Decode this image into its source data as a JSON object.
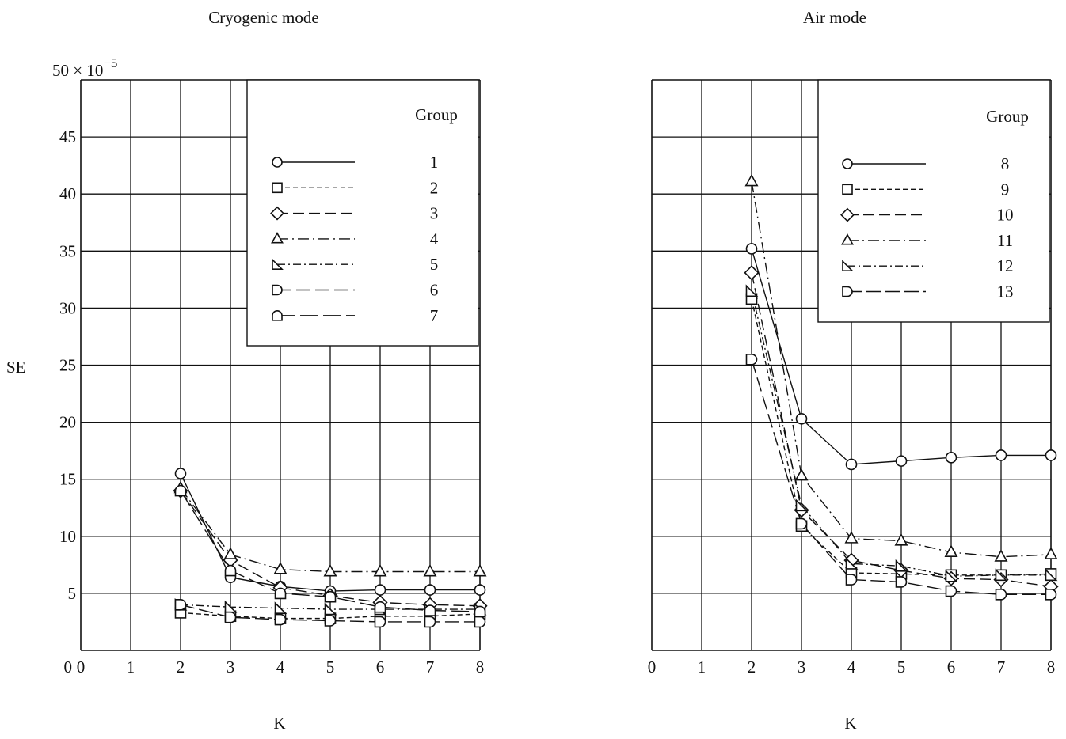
{
  "ylabel": "SE",
  "y_unit_label": "50 × 10",
  "y_unit_exponent": "−5",
  "chart_data": [
    {
      "type": "line",
      "title": "Cryogenic mode",
      "xlabel": "K",
      "ylabel": "SE",
      "xlim": [
        0,
        8
      ],
      "ylim": [
        0,
        50
      ],
      "y_multiplier": "10^-5",
      "grid": true,
      "x_ticks": [
        "0",
        "1",
        "2",
        "3",
        "4",
        "5",
        "6",
        "7",
        "8"
      ],
      "y_ticks": [
        "5",
        "10",
        "15",
        "20",
        "25",
        "30",
        "35",
        "40",
        "45"
      ],
      "y_top_label": "50 × 10−5",
      "legend": {
        "title": "Group",
        "placement": "top-right"
      },
      "x": [
        2,
        3,
        4,
        5,
        6,
        7,
        8
      ],
      "series": [
        {
          "name": "1",
          "marker": "circle",
          "dash": "solid",
          "values": [
            15.5,
            6.4,
            5.6,
            5.2,
            5.3,
            5.3,
            5.3
          ]
        },
        {
          "name": "2",
          "marker": "square",
          "dash": "short",
          "values": [
            3.3,
            3.0,
            2.8,
            2.8,
            3.0,
            3.0,
            3.2
          ]
        },
        {
          "name": "3",
          "marker": "diamond",
          "dash": "long",
          "values": [
            14.0,
            7.9,
            5.5,
            4.8,
            4.2,
            4.0,
            3.9
          ]
        },
        {
          "name": "4",
          "marker": "triangle",
          "dash": "dashdot",
          "values": [
            14.2,
            8.4,
            7.1,
            6.9,
            6.9,
            6.9,
            6.9
          ]
        },
        {
          "name": "5",
          "marker": "triangle-right",
          "dash": "dashdot2",
          "values": [
            4.0,
            3.8,
            3.7,
            3.6,
            3.6,
            3.6,
            3.6
          ]
        },
        {
          "name": "6",
          "marker": "half-right",
          "dash": "longdash",
          "values": [
            4.0,
            2.9,
            2.7,
            2.6,
            2.5,
            2.5,
            2.5
          ]
        },
        {
          "name": "7",
          "marker": "half-top",
          "dash": "longdash2",
          "values": [
            14.0,
            7.0,
            5.0,
            4.7,
            3.8,
            3.5,
            3.4
          ]
        }
      ]
    },
    {
      "type": "line",
      "title": "Air mode",
      "xlabel": "K",
      "ylabel": "SE",
      "xlim": [
        0,
        8
      ],
      "ylim": [
        0,
        50
      ],
      "y_multiplier": "10^-5",
      "grid": true,
      "x_ticks": [
        "0",
        "1",
        "2",
        "3",
        "4",
        "5",
        "6",
        "7",
        "8"
      ],
      "legend": {
        "title": "Group",
        "placement": "top-right"
      },
      "x": [
        2,
        3,
        4,
        5,
        6,
        7,
        8
      ],
      "series": [
        {
          "name": "8",
          "marker": "circle",
          "dash": "solid",
          "values": [
            35.2,
            20.3,
            16.3,
            16.6,
            16.9,
            17.1,
            17.1
          ]
        },
        {
          "name": "9",
          "marker": "square",
          "dash": "short",
          "values": [
            30.8,
            10.9,
            6.8,
            6.7,
            6.6,
            6.6,
            6.7
          ]
        },
        {
          "name": "10",
          "marker": "diamond",
          "dash": "long",
          "values": [
            33.1,
            12.3,
            7.9,
            7.0,
            6.3,
            6.2,
            5.6
          ]
        },
        {
          "name": "11",
          "marker": "triangle",
          "dash": "dashdot",
          "values": [
            41.1,
            15.3,
            9.8,
            9.6,
            8.6,
            8.2,
            8.4
          ]
        },
        {
          "name": "12",
          "marker": "triangle-right",
          "dash": "dashdot2",
          "values": [
            31.5,
            12.7,
            7.6,
            7.4,
            6.5,
            6.6,
            6.6
          ]
        },
        {
          "name": "13",
          "marker": "half-right",
          "dash": "longdash",
          "values": [
            25.5,
            11.1,
            6.2,
            6.0,
            5.2,
            4.9,
            4.9
          ]
        }
      ]
    }
  ]
}
